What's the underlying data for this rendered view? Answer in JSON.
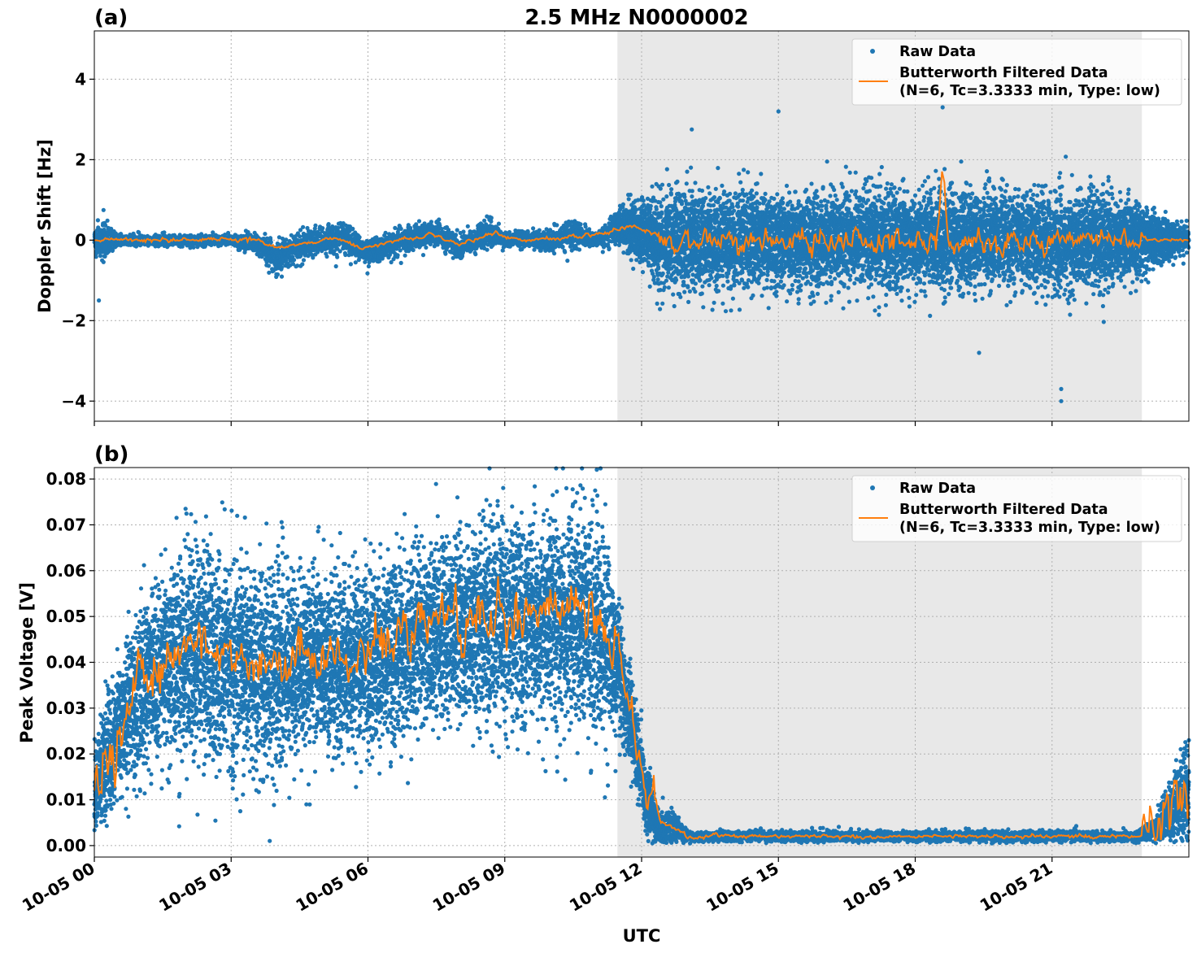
{
  "title": "2.5 MHz N0000002",
  "xlabel": "UTC",
  "colors": {
    "raw": "#1f77b4",
    "filtered": "#ff7f0e",
    "night_shade": "#e8e8e8"
  },
  "legend": {
    "placement": "top-right",
    "raw_label": "Raw Data",
    "filtered_label_line1": "Butterworth Filtered Data",
    "filtered_label_line2": "(N=6, Tc=3.3333 min, Type: low)"
  },
  "x_ticks": [
    {
      "hour": 0,
      "label": "10-05 00"
    },
    {
      "hour": 3,
      "label": "10-05 03"
    },
    {
      "hour": 6,
      "label": "10-05 06"
    },
    {
      "hour": 9,
      "label": "10-05 09"
    },
    {
      "hour": 12,
      "label": "10-05 12"
    },
    {
      "hour": 15,
      "label": "10-05 15"
    },
    {
      "hour": 18,
      "label": "10-05 18"
    },
    {
      "hour": 21,
      "label": "10-05 21"
    }
  ],
  "chart_data": [
    {
      "type": "scatter",
      "panel": "(a)",
      "ylabel": "Doppler Shift [Hz]",
      "xlim_hours": [
        0,
        24
      ],
      "ylim": [
        -4.5,
        5.2
      ],
      "grid": true,
      "y_ticks": [
        {
          "value": 4,
          "label": "4"
        },
        {
          "value": 2,
          "label": "2"
        },
        {
          "value": 0,
          "label": "0"
        },
        {
          "value": -2,
          "label": "−2"
        },
        {
          "value": -4,
          "label": "−4"
        }
      ],
      "shaded_region_hours": [
        11.47,
        22.97
      ],
      "series": [
        {
          "name": "Raw Data",
          "kind": "points",
          "envelope": [
            {
              "hour": 0.0,
              "center": 0.0,
              "spread": 0.35
            },
            {
              "hour": 0.2,
              "center": 0.0,
              "spread": 0.55
            },
            {
              "hour": 0.5,
              "center": 0.0,
              "spread": 0.15
            },
            {
              "hour": 3.0,
              "center": 0.0,
              "spread": 0.12
            },
            {
              "hour": 3.7,
              "center": -0.15,
              "spread": 0.35
            },
            {
              "hour": 4.0,
              "center": -0.45,
              "spread": 0.45
            },
            {
              "hour": 4.6,
              "center": -0.1,
              "spread": 0.35
            },
            {
              "hour": 5.4,
              "center": 0.1,
              "spread": 0.4
            },
            {
              "hour": 6.0,
              "center": -0.3,
              "spread": 0.35
            },
            {
              "hour": 7.0,
              "center": 0.05,
              "spread": 0.35
            },
            {
              "hour": 7.5,
              "center": 0.2,
              "spread": 0.35
            },
            {
              "hour": 8.0,
              "center": -0.2,
              "spread": 0.3
            },
            {
              "hour": 8.7,
              "center": 0.25,
              "spread": 0.4
            },
            {
              "hour": 9.0,
              "center": 0.0,
              "spread": 0.2
            },
            {
              "hour": 10.0,
              "center": 0.0,
              "spread": 0.25
            },
            {
              "hour": 10.5,
              "center": 0.15,
              "spread": 0.35
            },
            {
              "hour": 11.0,
              "center": 0.0,
              "spread": 0.2
            },
            {
              "hour": 11.5,
              "center": 0.35,
              "spread": 0.5
            },
            {
              "hour": 12.2,
              "center": 0.1,
              "spread": 0.9
            },
            {
              "hour": 12.4,
              "center": 0.0,
              "spread": 1.25
            },
            {
              "hour": 18.5,
              "center": 0.0,
              "spread": 1.3
            },
            {
              "hour": 22.0,
              "center": 0.0,
              "spread": 1.25
            },
            {
              "hour": 22.9,
              "center": 0.0,
              "spread": 1.0
            },
            {
              "hour": 23.3,
              "center": 0.0,
              "spread": 0.6
            },
            {
              "hour": 24.0,
              "center": 0.0,
              "spread": 0.4
            }
          ],
          "notable_points": [
            {
              "hour": 15.0,
              "value": 3.2
            },
            {
              "hour": 18.6,
              "value": 3.3
            },
            {
              "hour": 21.2,
              "value": -4.0
            },
            {
              "hour": 21.2,
              "value": -3.7
            },
            {
              "hour": 13.1,
              "value": 2.75
            },
            {
              "hour": 0.1,
              "value": -1.5
            },
            {
              "hour": 19.4,
              "value": -2.8
            }
          ]
        },
        {
          "name": "Butterworth Filtered Data (N=6, Tc=3.3333 min, Type: low)",
          "kind": "line",
          "trend": [
            {
              "hour": 0.0,
              "value": 0.0
            },
            {
              "hour": 3.6,
              "value": 0.0
            },
            {
              "hour": 4.0,
              "value": -0.2
            },
            {
              "hour": 4.5,
              "value": -0.1
            },
            {
              "hour": 5.3,
              "value": 0.05
            },
            {
              "hour": 5.9,
              "value": -0.2
            },
            {
              "hour": 6.5,
              "value": -0.05
            },
            {
              "hour": 7.4,
              "value": 0.15
            },
            {
              "hour": 8.0,
              "value": -0.1
            },
            {
              "hour": 8.8,
              "value": 0.2
            },
            {
              "hour": 9.2,
              "value": 0.0
            },
            {
              "hour": 10.2,
              "value": 0.05
            },
            {
              "hour": 10.6,
              "value": 0.1
            },
            {
              "hour": 11.3,
              "value": 0.2
            },
            {
              "hour": 11.7,
              "value": 0.4
            },
            {
              "hour": 12.2,
              "value": 0.2
            },
            {
              "hour": 12.6,
              "value": 0.0
            },
            {
              "hour": 18.45,
              "value": 0.0
            },
            {
              "hour": 18.6,
              "value": 1.6
            },
            {
              "hour": 18.75,
              "value": 0.0
            },
            {
              "hour": 24.0,
              "value": 0.0
            }
          ],
          "noise_amplitude_day": 0.05,
          "noise_amplitude_night": 0.3
        }
      ]
    },
    {
      "type": "scatter",
      "panel": "(b)",
      "ylabel": "Peak Voltage [V]",
      "xlim_hours": [
        0,
        24
      ],
      "ylim": [
        -0.0025,
        0.0825
      ],
      "grid": true,
      "y_ticks": [
        {
          "value": 0.08,
          "label": "0.08"
        },
        {
          "value": 0.07,
          "label": "0.07"
        },
        {
          "value": 0.06,
          "label": "0.06"
        },
        {
          "value": 0.05,
          "label": "0.05"
        },
        {
          "value": 0.04,
          "label": "0.04"
        },
        {
          "value": 0.03,
          "label": "0.03"
        },
        {
          "value": 0.02,
          "label": "0.02"
        },
        {
          "value": 0.01,
          "label": "0.01"
        },
        {
          "value": 0.0,
          "label": "0.00"
        }
      ],
      "shaded_region_hours": [
        11.47,
        22.97
      ],
      "series": [
        {
          "name": "Raw Data",
          "kind": "points",
          "envelope": [
            {
              "hour": 0.0,
              "center": 0.012,
              "spread": 0.01
            },
            {
              "hour": 0.3,
              "center": 0.02,
              "spread": 0.013
            },
            {
              "hour": 0.8,
              "center": 0.032,
              "spread": 0.018
            },
            {
              "hour": 1.5,
              "center": 0.038,
              "spread": 0.022
            },
            {
              "hour": 2.0,
              "center": 0.042,
              "spread": 0.026
            },
            {
              "hour": 3.0,
              "center": 0.04,
              "spread": 0.024
            },
            {
              "hour": 4.0,
              "center": 0.038,
              "spread": 0.023
            },
            {
              "hour": 5.0,
              "center": 0.04,
              "spread": 0.021
            },
            {
              "hour": 6.0,
              "center": 0.04,
              "spread": 0.02
            },
            {
              "hour": 7.0,
              "center": 0.045,
              "spread": 0.022
            },
            {
              "hour": 8.0,
              "center": 0.048,
              "spread": 0.022
            },
            {
              "hour": 9.0,
              "center": 0.048,
              "spread": 0.024
            },
            {
              "hour": 10.0,
              "center": 0.05,
              "spread": 0.024
            },
            {
              "hour": 11.0,
              "center": 0.048,
              "spread": 0.026
            },
            {
              "hour": 11.5,
              "center": 0.04,
              "spread": 0.018
            },
            {
              "hour": 11.8,
              "center": 0.025,
              "spread": 0.01
            },
            {
              "hour": 12.1,
              "center": 0.01,
              "spread": 0.008
            },
            {
              "hour": 12.4,
              "center": 0.004,
              "spread": 0.004
            },
            {
              "hour": 12.7,
              "center": 0.004,
              "spread": 0.004
            },
            {
              "hour": 13.0,
              "center": 0.002,
              "spread": 0.0012
            },
            {
              "hour": 22.9,
              "center": 0.002,
              "spread": 0.0012
            },
            {
              "hour": 23.3,
              "center": 0.004,
              "spread": 0.003
            },
            {
              "hour": 23.7,
              "center": 0.009,
              "spread": 0.008
            },
            {
              "hour": 24.0,
              "center": 0.012,
              "spread": 0.012
            }
          ],
          "notable_points": [
            {
              "hour": 10.35,
              "value": 0.078
            },
            {
              "hour": 2.0,
              "value": 0.0735
            },
            {
              "hour": 4.65,
              "value": 0.009
            },
            {
              "hour": 3.2,
              "value": 0.0075
            },
            {
              "hour": 24.0,
              "value": 0.023
            }
          ]
        },
        {
          "name": "Butterworth Filtered Data (N=6, Tc=3.3333 min, Type: low)",
          "kind": "line",
          "trend": [
            {
              "hour": 0.0,
              "value": 0.012
            },
            {
              "hour": 0.3,
              "value": 0.02
            },
            {
              "hour": 0.8,
              "value": 0.033
            },
            {
              "hour": 1.5,
              "value": 0.04
            },
            {
              "hour": 2.0,
              "value": 0.046
            },
            {
              "hour": 3.0,
              "value": 0.042
            },
            {
              "hour": 4.0,
              "value": 0.038
            },
            {
              "hour": 5.0,
              "value": 0.04
            },
            {
              "hour": 6.0,
              "value": 0.044
            },
            {
              "hour": 7.0,
              "value": 0.046
            },
            {
              "hour": 8.0,
              "value": 0.05
            },
            {
              "hour": 9.0,
              "value": 0.05
            },
            {
              "hour": 10.0,
              "value": 0.052
            },
            {
              "hour": 11.0,
              "value": 0.052
            },
            {
              "hour": 11.5,
              "value": 0.043
            },
            {
              "hour": 11.8,
              "value": 0.027
            },
            {
              "hour": 12.1,
              "value": 0.012
            },
            {
              "hour": 12.4,
              "value": 0.005
            },
            {
              "hour": 12.7,
              "value": 0.004
            },
            {
              "hour": 13.0,
              "value": 0.002
            },
            {
              "hour": 22.9,
              "value": 0.002
            },
            {
              "hour": 23.3,
              "value": 0.004
            },
            {
              "hour": 23.7,
              "value": 0.009
            },
            {
              "hour": 24.0,
              "value": 0.01
            }
          ],
          "noise_amplitude_day": 0.006,
          "noise_amplitude_night": 0.0004
        }
      ]
    }
  ]
}
